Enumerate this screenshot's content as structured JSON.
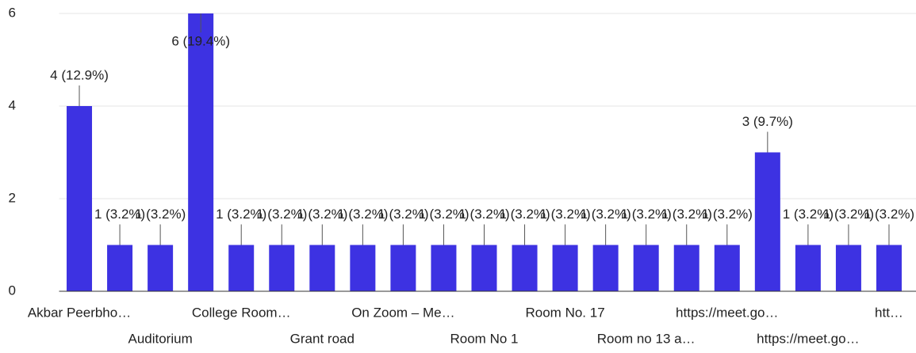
{
  "chart_data": {
    "type": "bar",
    "categories": [
      "Akbar Peerbho…",
      null,
      "Auditorium",
      null,
      "College Room…",
      null,
      "Grant road",
      null,
      "On Zoom – Me…",
      null,
      "Room No 1",
      null,
      "Room No. 17",
      null,
      "Room no 13 a…",
      null,
      "https://meet.go…",
      null,
      "https://meet.go…",
      null,
      "htt…"
    ],
    "values": [
      4,
      1,
      1,
      6,
      1,
      1,
      1,
      1,
      1,
      1,
      1,
      1,
      1,
      1,
      1,
      1,
      1,
      3,
      1,
      1,
      1
    ],
    "value_labels": [
      "4 (12.9%)",
      "1 (3.2%)",
      "1 (3.2%)",
      "6 (19.4%)",
      "1 (3.2%)",
      "1 (3.2%)",
      "1 (3.2%)",
      "1 (3.2%)",
      "1 (3.2%)",
      "1 (3.2%)",
      "1 (3.2%)",
      "1 (3.2%)",
      "1 (3.2%)",
      "1 (3.2%)",
      "1 (3.2%)",
      "1 (3.2%)",
      "1 (3.2%)",
      "3 (9.7%)",
      "1 (3.2%)",
      "1 (3.2%)",
      "1 (3.2%)"
    ],
    "color": "#3d32e2",
    "ylim": [
      0,
      6
    ],
    "yticks": [
      0,
      2,
      4,
      6
    ],
    "grid": true
  }
}
